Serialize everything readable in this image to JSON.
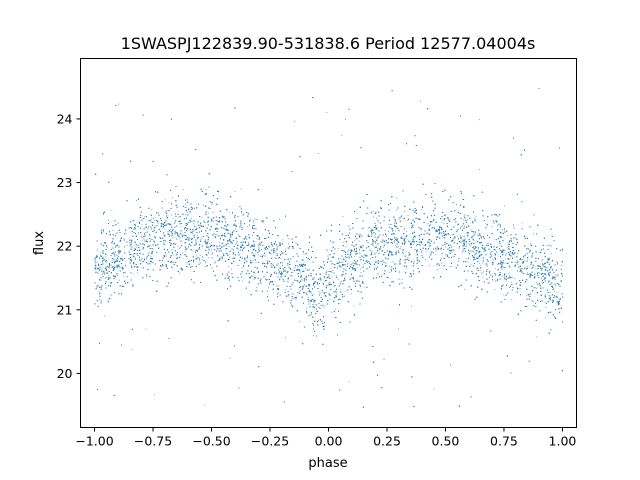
{
  "chart_data": {
    "type": "scatter",
    "title": "1SWASPJ122839.90-531838.6 Period 12577.04004s",
    "xlabel": "phase",
    "ylabel": "flux",
    "xlim": [
      -1.06,
      1.06
    ],
    "ylim": [
      19.15,
      24.95
    ],
    "x_ticks": [
      -1.0,
      -0.75,
      -0.5,
      -0.25,
      0.0,
      0.25,
      0.5,
      0.75,
      1.0
    ],
    "x_tick_labels": [
      "−1.00",
      "−0.75",
      "−0.50",
      "−0.25",
      "0.00",
      "0.25",
      "0.50",
      "0.75",
      "1.00"
    ],
    "y_ticks": [
      20,
      21,
      22,
      23,
      24
    ],
    "y_tick_labels": [
      "20",
      "21",
      "22",
      "23",
      "24"
    ],
    "grid": false,
    "legend": "none",
    "marker_color": "#1f77b4",
    "series": [
      {
        "x_range": [
          -1.0,
          1.0
        ],
        "trend": {
          "phase": [
            -1.0,
            -0.9,
            -0.8,
            -0.7,
            -0.6,
            -0.5,
            -0.4,
            -0.3,
            -0.2,
            -0.1,
            -0.05,
            0.0,
            0.05,
            0.1,
            0.2,
            0.3,
            0.4,
            0.5,
            0.6,
            0.7,
            0.8,
            0.9,
            1.0
          ],
          "flux": [
            21.55,
            21.85,
            22.05,
            22.15,
            22.18,
            22.15,
            22.05,
            21.9,
            21.7,
            21.45,
            21.3,
            21.35,
            21.55,
            21.8,
            22.0,
            22.1,
            22.15,
            22.15,
            22.05,
            21.9,
            21.75,
            21.55,
            21.35
          ]
        },
        "scatter_sigma": 0.3,
        "outlier_range": [
          19.4,
          24.5
        ]
      }
    ]
  }
}
